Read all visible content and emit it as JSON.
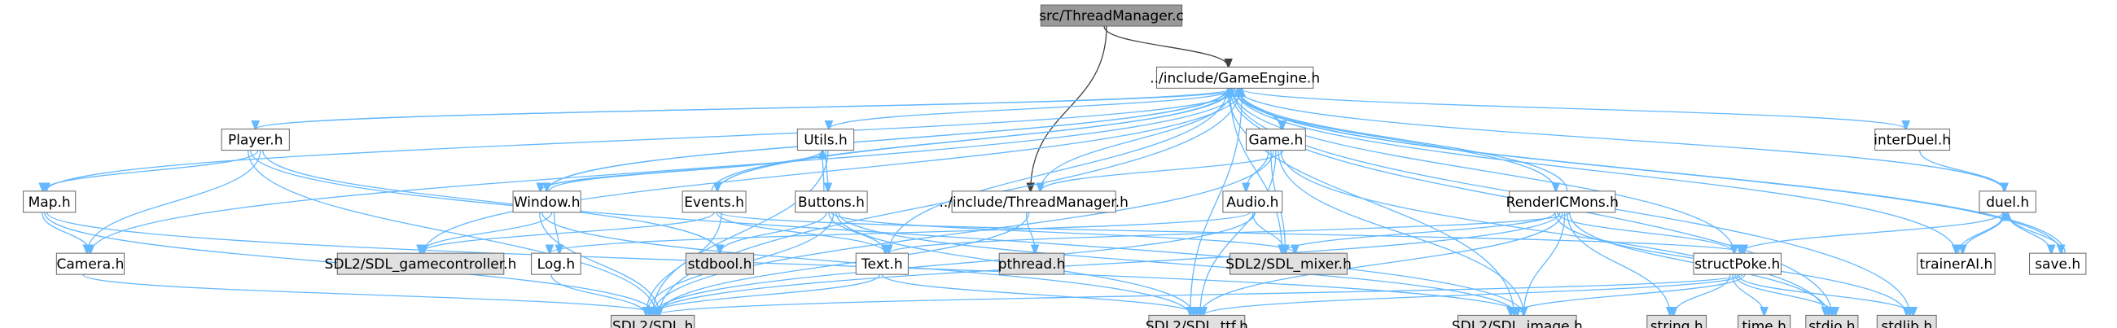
{
  "title": "src/ThreadManager.c",
  "colors": {
    "root_fill": "#999999",
    "node_fill": "#ffffff",
    "system_fill": "#e0e0e0",
    "node_border": "#666666",
    "edge": "#63b8ff",
    "root_edge": "#404040"
  },
  "nodes": [
    {
      "id": "src_threadmanager_c",
      "label": "src/ThreadManager.c",
      "kind": "root"
    },
    {
      "id": "include_gameengine_h",
      "label": "../include/GameEngine.h",
      "kind": "local"
    },
    {
      "id": "player_h",
      "label": "Player.h",
      "kind": "local"
    },
    {
      "id": "utils_h",
      "label": "Utils.h",
      "kind": "local"
    },
    {
      "id": "game_h",
      "label": "Game.h",
      "kind": "local"
    },
    {
      "id": "interduel_h",
      "label": "interDuel.h",
      "kind": "local"
    },
    {
      "id": "map_h",
      "label": "Map.h",
      "kind": "local"
    },
    {
      "id": "window_h",
      "label": "Window.h",
      "kind": "local"
    },
    {
      "id": "events_h",
      "label": "Events.h",
      "kind": "local"
    },
    {
      "id": "buttons_h",
      "label": "Buttons.h",
      "kind": "local"
    },
    {
      "id": "include_threadmanager_h",
      "label": "../include/ThreadManager.h",
      "kind": "local"
    },
    {
      "id": "audio_h",
      "label": "Audio.h",
      "kind": "local"
    },
    {
      "id": "rendericmons_h",
      "label": "RenderICMons.h",
      "kind": "local"
    },
    {
      "id": "duel_h",
      "label": "duel.h",
      "kind": "local"
    },
    {
      "id": "camera_h",
      "label": "Camera.h",
      "kind": "local"
    },
    {
      "id": "sdl_gamecontroller_h",
      "label": "SDL2/SDL_gamecontroller.h",
      "kind": "system"
    },
    {
      "id": "log_h",
      "label": "Log.h",
      "kind": "local"
    },
    {
      "id": "stdbool_h",
      "label": "stdbool.h",
      "kind": "system"
    },
    {
      "id": "text_h",
      "label": "Text.h",
      "kind": "local"
    },
    {
      "id": "pthread_h",
      "label": "pthread.h",
      "kind": "system"
    },
    {
      "id": "sdl_mixer_h",
      "label": "SDL2/SDL_mixer.h",
      "kind": "system"
    },
    {
      "id": "structpoke_h",
      "label": "structPoke.h",
      "kind": "local"
    },
    {
      "id": "trainerai_h",
      "label": "trainerAI.h",
      "kind": "local"
    },
    {
      "id": "save_h",
      "label": "save.h",
      "kind": "local"
    },
    {
      "id": "sdl_h",
      "label": "SDL2/SDL.h",
      "kind": "system"
    },
    {
      "id": "sdl_ttf_h",
      "label": "SDL2/SDL_ttf.h",
      "kind": "system"
    },
    {
      "id": "sdl_image_h",
      "label": "SDL2/SDL_image.h",
      "kind": "system"
    },
    {
      "id": "string_h",
      "label": "string.h",
      "kind": "system"
    },
    {
      "id": "time_h",
      "label": "time.h",
      "kind": "system"
    },
    {
      "id": "stdio_h",
      "label": "stdio.h",
      "kind": "system"
    },
    {
      "id": "stdlib_h",
      "label": "stdlib.h",
      "kind": "system"
    }
  ],
  "edges": [
    {
      "from": "src_threadmanager_c",
      "to": "include_gameengine_h",
      "style": "dark"
    },
    {
      "from": "src_threadmanager_c",
      "to": "include_threadmanager_h",
      "style": "dark"
    },
    {
      "from": "include_gameengine_h",
      "to": "player_h"
    },
    {
      "from": "include_gameengine_h",
      "to": "utils_h"
    },
    {
      "from": "include_gameengine_h",
      "to": "game_h"
    },
    {
      "from": "include_gameengine_h",
      "to": "interduel_h"
    },
    {
      "from": "include_gameengine_h",
      "to": "map_h"
    },
    {
      "from": "include_gameengine_h",
      "to": "window_h"
    },
    {
      "from": "include_gameengine_h",
      "to": "events_h"
    },
    {
      "from": "include_gameengine_h",
      "to": "include_threadmanager_h"
    },
    {
      "from": "include_gameengine_h",
      "to": "rendericmons_h"
    },
    {
      "from": "include_gameengine_h",
      "to": "duel_h"
    },
    {
      "from": "include_gameengine_h",
      "to": "camera_h"
    },
    {
      "from": "include_gameengine_h",
      "to": "sdl_gamecontroller_h"
    },
    {
      "from": "include_gameengine_h",
      "to": "text_h"
    },
    {
      "from": "include_gameengine_h",
      "to": "sdl_mixer_h"
    },
    {
      "from": "include_gameengine_h",
      "to": "structpoke_h"
    },
    {
      "from": "include_gameengine_h",
      "to": "trainerai_h"
    },
    {
      "from": "include_gameengine_h",
      "to": "save_h"
    },
    {
      "from": "include_gameengine_h",
      "to": "sdl_h"
    },
    {
      "from": "include_gameengine_h",
      "to": "sdl_ttf_h"
    },
    {
      "from": "include_gameengine_h",
      "to": "sdl_image_h"
    },
    {
      "from": "include_gameengine_h",
      "to": "stdio_h"
    },
    {
      "from": "include_gameengine_h",
      "to": "stdlib_h"
    },
    {
      "from": "player_h",
      "to": "include_gameengine_h"
    },
    {
      "from": "player_h",
      "to": "map_h"
    },
    {
      "from": "player_h",
      "to": "camera_h"
    },
    {
      "from": "player_h",
      "to": "stdbool_h"
    },
    {
      "from": "player_h",
      "to": "sdl_h"
    },
    {
      "from": "player_h",
      "to": "sdl_image_h"
    },
    {
      "from": "utils_h",
      "to": "window_h"
    },
    {
      "from": "utils_h",
      "to": "buttons_h"
    },
    {
      "from": "utils_h",
      "to": "sdl_h"
    },
    {
      "from": "game_h",
      "to": "include_gameengine_h"
    },
    {
      "from": "game_h",
      "to": "include_threadmanager_h"
    },
    {
      "from": "game_h",
      "to": "audio_h"
    },
    {
      "from": "game_h",
      "to": "sdl_mixer_h"
    },
    {
      "from": "game_h",
      "to": "sdl_h"
    },
    {
      "from": "game_h",
      "to": "sdl_ttf_h"
    },
    {
      "from": "game_h",
      "to": "sdl_image_h"
    },
    {
      "from": "game_h",
      "to": "stdio_h"
    },
    {
      "from": "interduel_h",
      "to": "duel_h"
    },
    {
      "from": "map_h",
      "to": "camera_h"
    },
    {
      "from": "map_h",
      "to": "sdl_h"
    },
    {
      "from": "map_h",
      "to": "sdl_image_h"
    },
    {
      "from": "window_h",
      "to": "include_gameengine_h"
    },
    {
      "from": "window_h",
      "to": "utils_h"
    },
    {
      "from": "window_h",
      "to": "sdl_gamecontroller_h"
    },
    {
      "from": "window_h",
      "to": "log_h"
    },
    {
      "from": "window_h",
      "to": "sdl_h"
    },
    {
      "from": "window_h",
      "to": "sdl_ttf_h"
    },
    {
      "from": "events_h",
      "to": "include_gameengine_h"
    },
    {
      "from": "events_h",
      "to": "sdl_gamecontroller_h"
    },
    {
      "from": "events_h",
      "to": "text_h"
    },
    {
      "from": "events_h",
      "to": "structpoke_h"
    },
    {
      "from": "events_h",
      "to": "sdl_h"
    },
    {
      "from": "buttons_h",
      "to": "utils_h"
    },
    {
      "from": "buttons_h",
      "to": "stdbool_h"
    },
    {
      "from": "buttons_h",
      "to": "text_h"
    },
    {
      "from": "buttons_h",
      "to": "sdl_mixer_h"
    },
    {
      "from": "buttons_h",
      "to": "sdl_h"
    },
    {
      "from": "buttons_h",
      "to": "sdl_ttf_h"
    },
    {
      "from": "buttons_h",
      "to": "sdl_image_h"
    },
    {
      "from": "include_threadmanager_h",
      "to": "pthread_h"
    },
    {
      "from": "include_threadmanager_h",
      "to": "sdl_h"
    },
    {
      "from": "audio_h",
      "to": "log_h"
    },
    {
      "from": "audio_h",
      "to": "sdl_mixer_h"
    },
    {
      "from": "audio_h",
      "to": "sdl_h"
    },
    {
      "from": "rendericmons_h",
      "to": "include_gameengine_h"
    },
    {
      "from": "rendericmons_h",
      "to": "text_h"
    },
    {
      "from": "rendericmons_h",
      "to": "sdl_mixer_h"
    },
    {
      "from": "rendericmons_h",
      "to": "structpoke_h"
    },
    {
      "from": "rendericmons_h",
      "to": "sdl_h"
    },
    {
      "from": "rendericmons_h",
      "to": "sdl_ttf_h"
    },
    {
      "from": "rendericmons_h",
      "to": "sdl_image_h"
    },
    {
      "from": "rendericmons_h",
      "to": "string_h"
    },
    {
      "from": "rendericmons_h",
      "to": "stdio_h"
    },
    {
      "from": "rendericmons_h",
      "to": "stdlib_h"
    },
    {
      "from": "duel_h",
      "to": "structpoke_h"
    },
    {
      "from": "duel_h",
      "to": "trainerai_h"
    },
    {
      "from": "duel_h",
      "to": "save_h"
    },
    {
      "from": "trainerai_h",
      "to": "duel_h"
    },
    {
      "from": "save_h",
      "to": "duel_h"
    },
    {
      "from": "save_h",
      "to": "include_gameengine_h"
    },
    {
      "from": "camera_h",
      "to": "sdl_h"
    },
    {
      "from": "log_h",
      "to": "sdl_h"
    },
    {
      "from": "text_h",
      "to": "sdl_h"
    },
    {
      "from": "text_h",
      "to": "sdl_ttf_h"
    },
    {
      "from": "structpoke_h",
      "to": "sdl_h"
    },
    {
      "from": "structpoke_h",
      "to": "sdl_ttf_h"
    },
    {
      "from": "structpoke_h",
      "to": "sdl_image_h"
    },
    {
      "from": "structpoke_h",
      "to": "string_h"
    },
    {
      "from": "structpoke_h",
      "to": "time_h"
    },
    {
      "from": "structpoke_h",
      "to": "stdio_h"
    },
    {
      "from": "structpoke_h",
      "to": "stdlib_h"
    }
  ]
}
